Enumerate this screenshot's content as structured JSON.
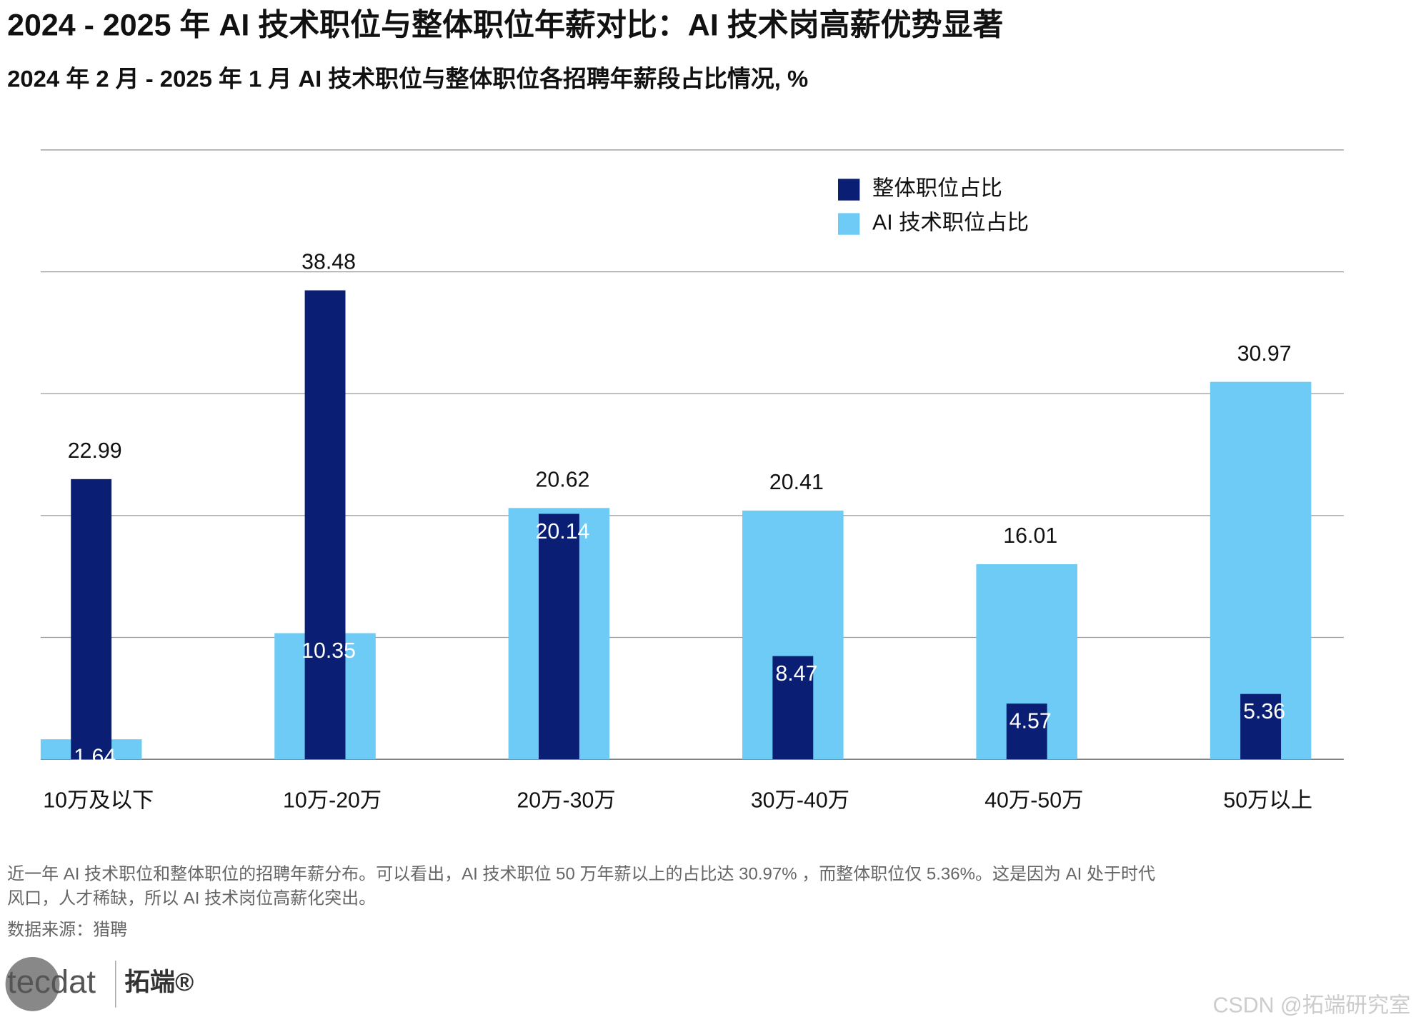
{
  "chart_data": {
    "type": "bar",
    "title": "2024 - 2025 年 AI 技术职位与整体职位年薪对比：AI 技术岗高薪优势显著",
    "subtitle": "2024 年 2 月 - 2025 年 1 月 AI 技术职位与整体职位各招聘年薪段占比情况, %",
    "categories": [
      "10万及以下",
      "10万-20万",
      "20万-30万",
      "30万-40万",
      "40万-50万",
      "50万以上"
    ],
    "series": [
      {
        "name": "整体职位占比",
        "color": "#0a1f73",
        "values": [
          22.99,
          38.48,
          20.14,
          8.47,
          4.57,
          5.36
        ]
      },
      {
        "name": "AI 技术职位占比",
        "color": "#6ecbf5",
        "values": [
          1.64,
          10.35,
          20.62,
          20.41,
          16.01,
          30.97
        ]
      }
    ],
    "ylim": [
      0,
      50
    ],
    "yticks": [
      0,
      10,
      20,
      30,
      40,
      50
    ],
    "tick_labels": false,
    "grid": true,
    "legend": "top-right"
  },
  "footer": {
    "note": [
      "近一年 AI 技术职位和整体职位的招聘年薪分布。可以看出，AI 技术职位 50 万年薪以上的占比达 30.97% ，而整体职位仅 5.36%。这是因为 AI 处于时代",
      "风口，人才稀缺，所以 AI 技术岗位高薪化突出。"
    ],
    "source": "数据来源：猎聘",
    "logo": [
      "tecdat",
      "拓端®"
    ],
    "watermark": "CSDN @拓端研究室"
  }
}
